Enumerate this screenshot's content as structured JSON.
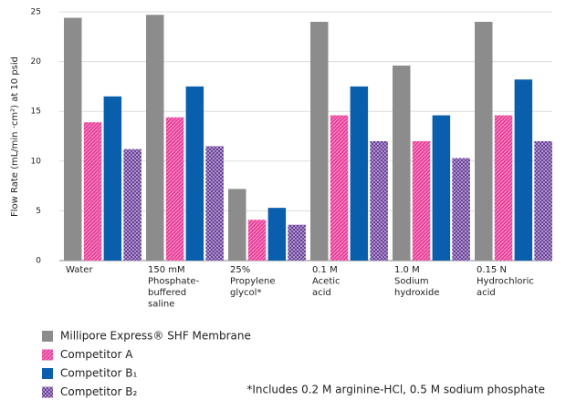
{
  "chart_data": {
    "type": "bar",
    "y_label": "Flow Rate (mL/min ·cm²) at 10 psid",
    "categories": [
      [
        "Water"
      ],
      [
        "150 mM",
        "Phosphate-",
        "buffered",
        "saline"
      ],
      [
        "25%",
        "Propylene",
        "glycol*"
      ],
      [
        "0.1 M",
        "Acetic",
        "acid"
      ],
      [
        "1.0 M",
        "Sodium",
        "hydroxide"
      ],
      [
        "0.15 N",
        "Hydrochloric",
        "acid"
      ]
    ],
    "series": [
      {
        "name": "Millipore Express® SHF Membrane",
        "color": "#8c8c8c",
        "pattern": "solid",
        "values": [
          24.4,
          24.7,
          7.2,
          24.0,
          19.6,
          24.0
        ]
      },
      {
        "name": "Competitor A",
        "color": "#e8409a",
        "pattern": "hatch",
        "values": [
          13.9,
          14.4,
          4.1,
          14.6,
          12.0,
          14.6
        ]
      },
      {
        "name": "Competitor B₁",
        "color": "#0a5fad",
        "pattern": "solid",
        "values": [
          16.5,
          17.5,
          5.3,
          17.5,
          14.6,
          18.2
        ]
      },
      {
        "name": "Competitor B₂",
        "color": "#5c2d91",
        "pattern": "crosshatch",
        "values": [
          11.2,
          11.5,
          3.6,
          12.0,
          10.3,
          12.0
        ]
      }
    ],
    "ylim": [
      0,
      25
    ],
    "yticks": [
      0,
      5,
      10,
      15,
      20,
      25
    ],
    "grid": true,
    "footnote": "*Includes 0.2 M arginine-HCl, 0.5 M sodium phosphate"
  }
}
